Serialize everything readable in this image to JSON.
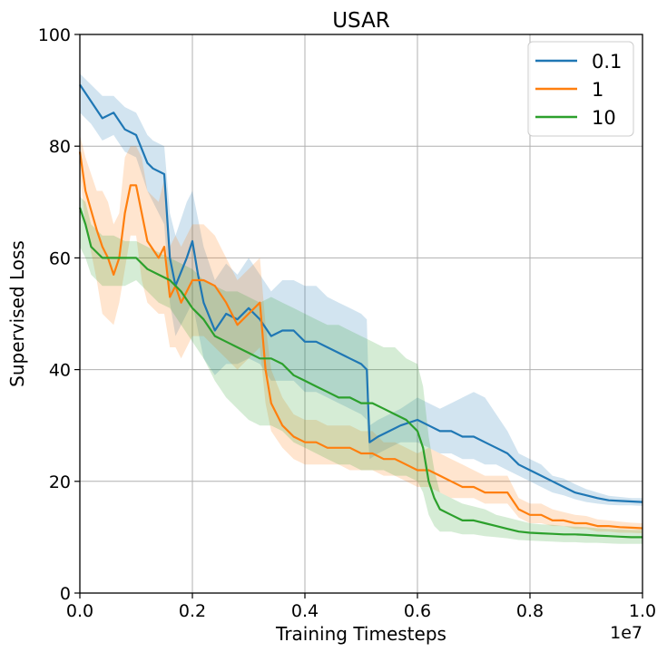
{
  "chart_data": {
    "type": "line",
    "title": "USAR",
    "xlabel": "Training Timesteps",
    "ylabel": "Supervised Loss",
    "x_offset_label": "1e7",
    "xlim": [
      0,
      1.0
    ],
    "ylim": [
      0,
      100
    ],
    "x_ticks": [
      "0.0",
      "0.2",
      "0.4",
      "0.6",
      "0.8",
      "1.0"
    ],
    "y_ticks": [
      "0",
      "20",
      "40",
      "60",
      "80",
      "100"
    ],
    "grid": true,
    "legend_position": "top-right",
    "series": [
      {
        "name": "0.1",
        "color": "#1f77b4",
        "x": [
          0.0,
          0.02,
          0.04,
          0.06,
          0.08,
          0.1,
          0.12,
          0.13,
          0.15,
          0.16,
          0.17,
          0.19,
          0.2,
          0.21,
          0.22,
          0.24,
          0.26,
          0.28,
          0.3,
          0.32,
          0.34,
          0.36,
          0.38,
          0.4,
          0.42,
          0.44,
          0.46,
          0.48,
          0.5,
          0.51,
          0.515,
          0.53,
          0.55,
          0.57,
          0.6,
          0.62,
          0.64,
          0.66,
          0.68,
          0.7,
          0.72,
          0.74,
          0.76,
          0.78,
          0.8,
          0.82,
          0.84,
          0.86,
          0.88,
          0.9,
          0.92,
          0.94,
          0.96,
          0.98,
          1.0
        ],
        "y": [
          91,
          88,
          85,
          86,
          83,
          82,
          77,
          76,
          75,
          60,
          55,
          60,
          63,
          57,
          52,
          47,
          50,
          49,
          51,
          49,
          46,
          47,
          47,
          45,
          45,
          44,
          43,
          42,
          41,
          40,
          27,
          28,
          29,
          30,
          31,
          30,
          29,
          29,
          28,
          28,
          27,
          26,
          25,
          23,
          22,
          21,
          20,
          19,
          18,
          17.5,
          17,
          16.6,
          16.5,
          16.4,
          16.3
        ],
        "lower": [
          86,
          84,
          81,
          82,
          79,
          78,
          72,
          70,
          66,
          52,
          46,
          50,
          52,
          47,
          42,
          39,
          41,
          41,
          42,
          41,
          38,
          38,
          38,
          36,
          36,
          35,
          34,
          33,
          32,
          31,
          24,
          25,
          26,
          27,
          27,
          26,
          25,
          25,
          24,
          24,
          23,
          23,
          22,
          21,
          20,
          19,
          18,
          17.5,
          16.8,
          16.3,
          16,
          15.8,
          15.7,
          15.7,
          15.6
        ],
        "upper": [
          93,
          91,
          89,
          89,
          87,
          86,
          82,
          81,
          80,
          68,
          64,
          70,
          72,
          67,
          62,
          56,
          59,
          57,
          60,
          57,
          54,
          56,
          56,
          55,
          55,
          53,
          52,
          51,
          50,
          49,
          30,
          31,
          32,
          33,
          35,
          34,
          33,
          34,
          35,
          36,
          35,
          32,
          29,
          25,
          24,
          23,
          21,
          20.5,
          19.5,
          18.6,
          18,
          17.4,
          17.2,
          17,
          17
        ]
      },
      {
        "name": "1",
        "color": "#ff7f0e",
        "x": [
          0.0,
          0.01,
          0.03,
          0.04,
          0.05,
          0.06,
          0.07,
          0.08,
          0.09,
          0.1,
          0.11,
          0.12,
          0.14,
          0.15,
          0.16,
          0.17,
          0.18,
          0.2,
          0.22,
          0.24,
          0.26,
          0.28,
          0.3,
          0.32,
          0.33,
          0.34,
          0.36,
          0.38,
          0.4,
          0.42,
          0.44,
          0.46,
          0.48,
          0.5,
          0.52,
          0.54,
          0.56,
          0.58,
          0.6,
          0.62,
          0.64,
          0.66,
          0.68,
          0.7,
          0.72,
          0.74,
          0.76,
          0.78,
          0.8,
          0.82,
          0.84,
          0.86,
          0.88,
          0.9,
          0.92,
          0.94,
          0.96,
          0.98,
          1.0
        ],
        "y": [
          79,
          72,
          65,
          62,
          60,
          57,
          60,
          68,
          73,
          73,
          68,
          63,
          60,
          62,
          53,
          55,
          52,
          56,
          56,
          55,
          52,
          48,
          50,
          52,
          40,
          34,
          30,
          28,
          27,
          27,
          26,
          26,
          26,
          25,
          25,
          24,
          24,
          23,
          22,
          22,
          21,
          20,
          19,
          19,
          18,
          18,
          18,
          15,
          14,
          14,
          13,
          13,
          12.5,
          12.5,
          12,
          12,
          11.8,
          11.7,
          11.6
        ],
        "lower": [
          75,
          66,
          56,
          50,
          49,
          48,
          52,
          58,
          64,
          64,
          56,
          52,
          50,
          50,
          44,
          44,
          42,
          46,
          46,
          44,
          42,
          40,
          42,
          44,
          34,
          29,
          26,
          24,
          23,
          23,
          23,
          23,
          22,
          22,
          22,
          21,
          21,
          20,
          19,
          19,
          18,
          17,
          17,
          17,
          16,
          16,
          16,
          13.5,
          12.5,
          12.5,
          12,
          12,
          11.5,
          11.5,
          11,
          11,
          10.8,
          10.8,
          10.7
        ],
        "upper": [
          82,
          78,
          72,
          72,
          70,
          66,
          68,
          78,
          80,
          80,
          78,
          72,
          70,
          74,
          62,
          64,
          62,
          66,
          66,
          64,
          60,
          56,
          58,
          60,
          48,
          40,
          35,
          32,
          31,
          31,
          30,
          30,
          30,
          29,
          29,
          27,
          27,
          26,
          25,
          26,
          25,
          24,
          23,
          22,
          21,
          21,
          21,
          17,
          16,
          16,
          15,
          14.5,
          14,
          13.8,
          13.2,
          13,
          12.8,
          12.6,
          12.5
        ]
      },
      {
        "name": "10",
        "color": "#2ca02c",
        "x": [
          0.0,
          0.01,
          0.02,
          0.04,
          0.06,
          0.08,
          0.1,
          0.12,
          0.14,
          0.16,
          0.18,
          0.2,
          0.22,
          0.24,
          0.26,
          0.28,
          0.3,
          0.32,
          0.34,
          0.36,
          0.38,
          0.4,
          0.42,
          0.44,
          0.46,
          0.48,
          0.5,
          0.52,
          0.54,
          0.56,
          0.58,
          0.6,
          0.61,
          0.62,
          0.63,
          0.64,
          0.66,
          0.68,
          0.7,
          0.72,
          0.74,
          0.76,
          0.78,
          0.8,
          0.82,
          0.84,
          0.86,
          0.88,
          0.9,
          0.92,
          0.94,
          0.96,
          0.98,
          1.0
        ],
        "y": [
          69,
          66,
          62,
          60,
          60,
          60,
          60,
          58,
          57,
          56,
          54,
          51,
          49,
          46,
          45,
          44,
          43,
          42,
          42,
          41,
          39,
          38,
          37,
          36,
          35,
          35,
          34,
          34,
          33,
          32,
          31,
          29,
          26,
          20,
          17,
          15,
          14,
          13,
          13,
          12.5,
          12,
          11.5,
          11,
          10.8,
          10.7,
          10.6,
          10.5,
          10.5,
          10.4,
          10.3,
          10.2,
          10.1,
          10,
          10
        ],
        "lower": [
          62,
          60,
          57,
          55,
          55,
          55,
          56,
          54,
          52,
          51,
          48,
          45,
          42,
          38,
          35,
          33,
          31,
          30,
          30,
          29,
          27,
          26,
          25,
          24,
          23,
          23,
          22,
          22,
          22,
          21,
          21,
          20,
          18,
          14,
          12,
          11,
          11,
          10.5,
          10.5,
          10.2,
          10,
          9.8,
          9.5,
          9.4,
          9.3,
          9.2,
          9.1,
          9.1,
          9,
          9,
          8.9,
          8.8,
          8.8,
          8.8
        ],
        "upper": [
          71,
          70,
          66,
          64,
          64,
          63,
          63,
          62,
          61,
          60,
          59,
          58,
          56,
          55,
          54,
          54,
          53,
          52,
          53,
          52,
          51,
          50,
          49,
          48,
          48,
          47,
          46,
          45,
          44,
          44,
          42,
          41,
          37,
          28,
          22,
          18,
          17,
          16,
          15.5,
          15,
          14,
          13.5,
          13,
          12.5,
          12.3,
          12.2,
          12,
          11.9,
          11.8,
          11.6,
          11.5,
          11.4,
          11.3,
          11.3
        ]
      }
    ]
  }
}
